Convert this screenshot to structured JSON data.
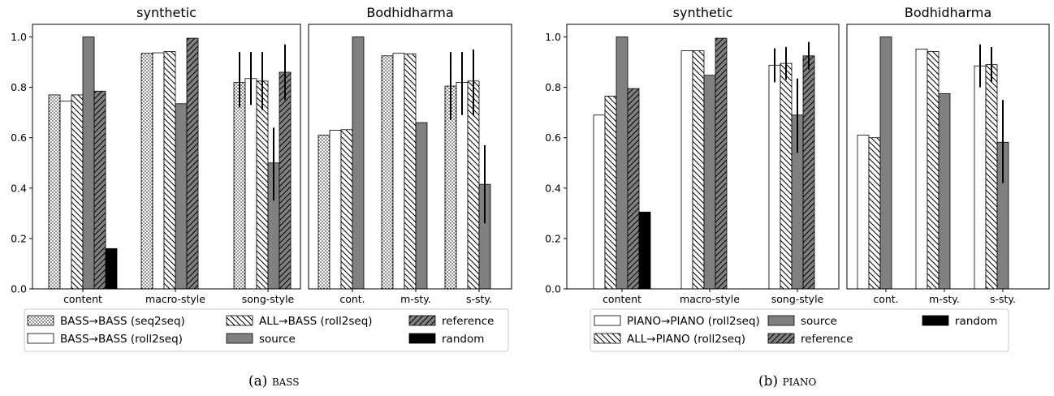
{
  "captions": [
    {
      "label": "(a)",
      "name": "bass"
    },
    {
      "label": "(b)",
      "name": "piano"
    }
  ],
  "chart_data": [
    {
      "type": "bar",
      "y_ticks": [
        "0.0",
        "0.2",
        "0.4",
        "0.6",
        "0.8",
        "1.0"
      ],
      "ylim": [
        0,
        1.05
      ],
      "grid": false,
      "legend": {
        "placement": "below",
        "columns": 3
      },
      "series": [
        {
          "name": "BASS→BASS (seq2seq)",
          "style": "dots",
          "color": "#ffffff"
        },
        {
          "name": "BASS→BASS (roll2seq)",
          "style": "plain",
          "color": "#ffffff"
        },
        {
          "name": "ALL→BASS (roll2seq)",
          "style": "diag",
          "color": "#ffffff"
        },
        {
          "name": "source",
          "style": "solid",
          "color": "#808080"
        },
        {
          "name": "reference",
          "style": "hatch-dark",
          "color": "#808080"
        },
        {
          "name": "random",
          "style": "solid",
          "color": "#000000"
        }
      ],
      "panels": [
        {
          "title": "synthetic",
          "categories": [
            "content",
            "macro-style",
            "song-style"
          ],
          "values": [
            [
              0.77,
              0.935,
              0.82
            ],
            [
              0.745,
              0.937,
              0.835
            ],
            [
              0.77,
              0.942,
              0.825
            ],
            [
              1.0,
              0.735,
              0.5
            ],
            [
              0.785,
              0.995,
              0.86
            ],
            [
              0.16,
              null,
              null
            ]
          ],
          "errors": [
            [
              null,
              null,
              [
                0.72,
                0.94
              ]
            ],
            [
              null,
              null,
              [
                0.73,
                0.94
              ]
            ],
            [
              null,
              null,
              [
                0.71,
                0.94
              ]
            ],
            [
              null,
              null,
              [
                0.35,
                0.64
              ]
            ],
            [
              null,
              null,
              [
                0.75,
                0.97
              ]
            ],
            [
              null,
              null,
              null
            ]
          ]
        },
        {
          "title": "Bodhidharma",
          "categories": [
            "cont.",
            "m-sty.",
            "s-sty."
          ],
          "values": [
            [
              0.61,
              0.925,
              0.805
            ],
            [
              0.63,
              0.935,
              0.82
            ],
            [
              0.632,
              0.932,
              0.825
            ],
            [
              1.0,
              0.66,
              0.415
            ],
            [
              null,
              null,
              null
            ],
            [
              null,
              null,
              null
            ]
          ],
          "errors": [
            [
              null,
              null,
              [
                0.67,
                0.94
              ]
            ],
            [
              null,
              null,
              [
                0.69,
                0.94
              ]
            ],
            [
              null,
              null,
              [
                0.69,
                0.95
              ]
            ],
            [
              null,
              null,
              [
                0.26,
                0.57
              ]
            ],
            [
              null,
              null,
              null
            ],
            [
              null,
              null,
              null
            ]
          ]
        }
      ]
    },
    {
      "type": "bar",
      "y_ticks": [
        "0.0",
        "0.2",
        "0.4",
        "0.6",
        "0.8",
        "1.0"
      ],
      "ylim": [
        0,
        1.05
      ],
      "grid": false,
      "legend": {
        "placement": "below",
        "columns": 3
      },
      "series": [
        {
          "name": "PIANO→PIANO (roll2seq)",
          "style": "plain",
          "color": "#ffffff"
        },
        {
          "name": "ALL→PIANO (roll2seq)",
          "style": "diag",
          "color": "#ffffff"
        },
        {
          "name": "source",
          "style": "solid",
          "color": "#808080"
        },
        {
          "name": "reference",
          "style": "hatch-dark",
          "color": "#808080"
        },
        {
          "name": "random",
          "style": "solid",
          "color": "#000000"
        }
      ],
      "panels": [
        {
          "title": "synthetic",
          "categories": [
            "content",
            "macro-style",
            "song-style"
          ],
          "values": [
            [
              0.69,
              0.945,
              0.888
            ],
            [
              0.765,
              0.945,
              0.895
            ],
            [
              1.0,
              0.848,
              0.69
            ],
            [
              0.795,
              0.995,
              0.925
            ],
            [
              0.305,
              null,
              null
            ]
          ],
          "errors": [
            [
              null,
              null,
              [
                0.82,
                0.955
              ]
            ],
            [
              null,
              null,
              [
                0.83,
                0.96
              ]
            ],
            [
              null,
              null,
              [
                0.54,
                0.835
              ]
            ],
            [
              null,
              null,
              [
                0.87,
                0.98
              ]
            ],
            [
              null,
              null,
              null
            ]
          ]
        },
        {
          "title": "Bodhidharma",
          "categories": [
            "cont.",
            "m-sty.",
            "s-sty."
          ],
          "values": [
            [
              0.61,
              0.952,
              0.885
            ],
            [
              0.6,
              0.942,
              0.89
            ],
            [
              1.0,
              0.775,
              0.582
            ],
            [
              null,
              null,
              null
            ],
            [
              null,
              null,
              null
            ]
          ],
          "errors": [
            [
              null,
              null,
              [
                0.8,
                0.97
              ]
            ],
            [
              null,
              null,
              [
                0.82,
                0.96
              ]
            ],
            [
              null,
              null,
              [
                0.42,
                0.75
              ]
            ],
            [
              null,
              null,
              null
            ],
            [
              null,
              null,
              null
            ]
          ]
        }
      ]
    }
  ]
}
